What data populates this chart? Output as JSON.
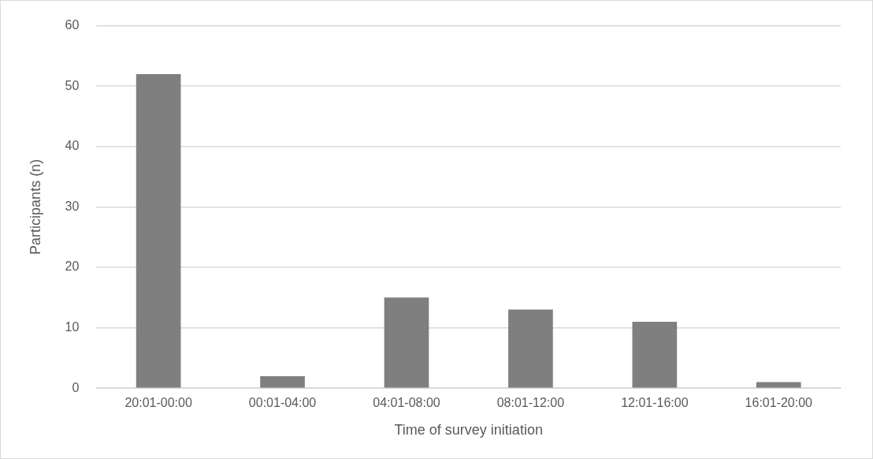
{
  "chart_data": {
    "type": "bar",
    "xlabel": "Time of survey initiation",
    "ylabel": "Participants (n)",
    "categories": [
      "20:01-00:00",
      "00:01-04:00",
      "04:01-08:00",
      "08:01-12:00",
      "12:01-16:00",
      "16:01-20:00"
    ],
    "values": [
      52,
      2,
      15,
      13,
      11,
      1
    ],
    "color": "#7f7f7f",
    "ylim": [
      0,
      60
    ],
    "yticks": [
      0,
      10,
      20,
      30,
      40,
      50,
      60
    ],
    "grid": "y"
  }
}
